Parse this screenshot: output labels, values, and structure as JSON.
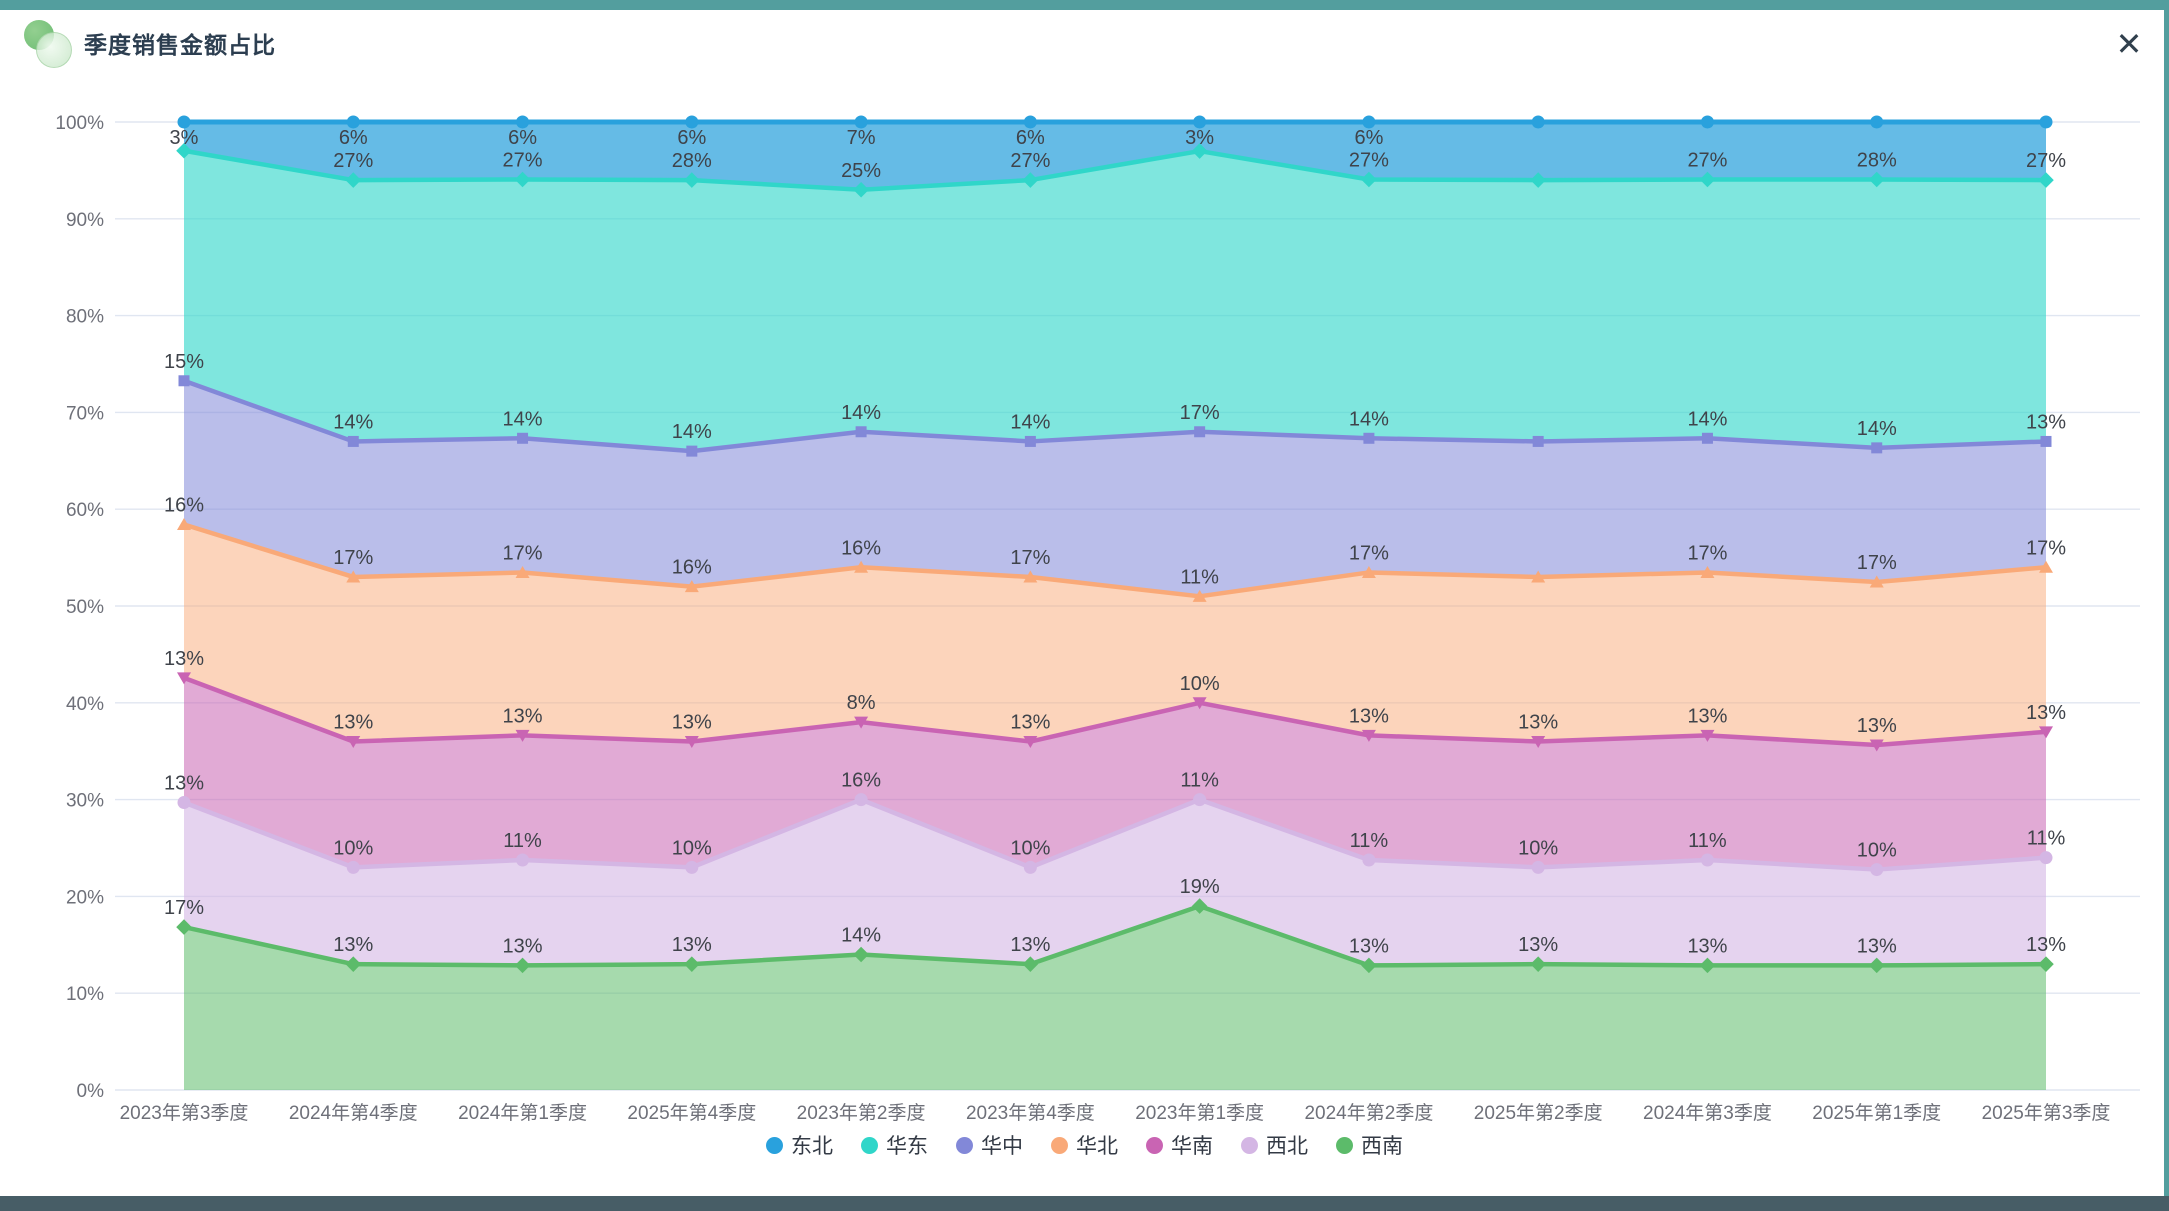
{
  "window": {
    "title": "季度销售金额占比",
    "close_icon": "✕"
  },
  "theme": {
    "top_bar_color": "#539e9e",
    "right_strip_color": "#539e9e",
    "bottom_bar_color": "#475d66",
    "title_color": "#2c3e50",
    "axis_label_color": "#6e7079",
    "data_label_color": "#3f434a",
    "gridline_color": "#e0e6f1"
  },
  "chart_data": {
    "type": "area",
    "stacked": true,
    "percent_stack": true,
    "title": "季度销售金额占比",
    "xlabel": "",
    "ylabel": "",
    "ylim": [
      0,
      100
    ],
    "grid": true,
    "legend_position": "bottom",
    "y_ticks": [
      "100%",
      "90%",
      "80%",
      "70%",
      "60%",
      "50%",
      "40%",
      "30%",
      "20%",
      "10%",
      "0%"
    ],
    "categories": [
      "2023年第3季度",
      "2024年第4季度",
      "2024年第1季度",
      "2025年第4季度",
      "2023年第2季度",
      "2023年第4季度",
      "2023年第1季度",
      "2024年第2季度",
      "2025年第2季度",
      "2024年第3季度",
      "2025年第1季度",
      "2025年第3季度"
    ],
    "series": [
      {
        "name": "东北",
        "color": "#29a1dd",
        "fill": "rgba(41,161,221,0.72)",
        "marker": "circle",
        "values": [
          3,
          6,
          6,
          6,
          7,
          6,
          3,
          6,
          6,
          6,
          6,
          6
        ],
        "labels": [
          "3%",
          "6%",
          "6%",
          "6%",
          "7%",
          "6%",
          "3%",
          "6%",
          null,
          null,
          null,
          null
        ]
      },
      {
        "name": "华东",
        "color": "#30d6c9",
        "fill": "rgba(48,214,201,0.62)",
        "marker": "diamond",
        "values": [
          24,
          27,
          27,
          28,
          25,
          27,
          29,
          27,
          27,
          27,
          28,
          27
        ],
        "labels": [
          null,
          "27%",
          "27%",
          "28%",
          "25%",
          "27%",
          null,
          "27%",
          null,
          "27%",
          "28%",
          "27%"
        ]
      },
      {
        "name": "华中",
        "color": "#8288d8",
        "fill": "rgba(130,136,216,0.55)",
        "marker": "square",
        "values": [
          15,
          14,
          14,
          14,
          14,
          14,
          17,
          14,
          14,
          14,
          14,
          13
        ],
        "labels": [
          "15%",
          "14%",
          "14%",
          "14%",
          "14%",
          "14%",
          "17%",
          "14%",
          null,
          "14%",
          "14%",
          "13%"
        ]
      },
      {
        "name": "华北",
        "color": "#f9a978",
        "fill": "rgba(249,169,120,0.5)",
        "marker": "triangle",
        "values": [
          16,
          17,
          17,
          16,
          16,
          17,
          11,
          17,
          17,
          17,
          17,
          17
        ],
        "labels": [
          "16%",
          "17%",
          "17%",
          "16%",
          "16%",
          "17%",
          "11%",
          "17%",
          null,
          "17%",
          "17%",
          "17%"
        ]
      },
      {
        "name": "华南",
        "color": "#c964b3",
        "fill": "rgba(201,100,179,0.55)",
        "marker": "triangle-down",
        "values": [
          13,
          13,
          13,
          13,
          8,
          13,
          10,
          13,
          13,
          13,
          13,
          13
        ],
        "labels": [
          "13%",
          "13%",
          "13%",
          "13%",
          "8%",
          "13%",
          "10%",
          "13%",
          "13%",
          "13%",
          "13%",
          "13%"
        ]
      },
      {
        "name": "西北",
        "color": "#d4b6e4",
        "fill": "rgba(212,182,228,0.6)",
        "marker": "circle",
        "values": [
          13,
          10,
          11,
          10,
          16,
          10,
          11,
          11,
          10,
          11,
          10,
          11
        ],
        "labels": [
          "13%",
          "10%",
          "11%",
          "10%",
          "16%",
          "10%",
          "11%",
          "11%",
          "10%",
          "11%",
          "10%",
          "11%"
        ]
      },
      {
        "name": "西南",
        "color": "#5cbb6a",
        "fill": "rgba(92,187,106,0.55)",
        "marker": "diamond",
        "values": [
          17,
          13,
          13,
          13,
          14,
          13,
          19,
          13,
          13,
          13,
          13,
          13
        ],
        "labels": [
          "17%",
          "13%",
          "13%",
          "13%",
          "14%",
          "13%",
          "19%",
          "13%",
          "13%",
          "13%",
          "13%",
          "13%"
        ]
      }
    ]
  }
}
